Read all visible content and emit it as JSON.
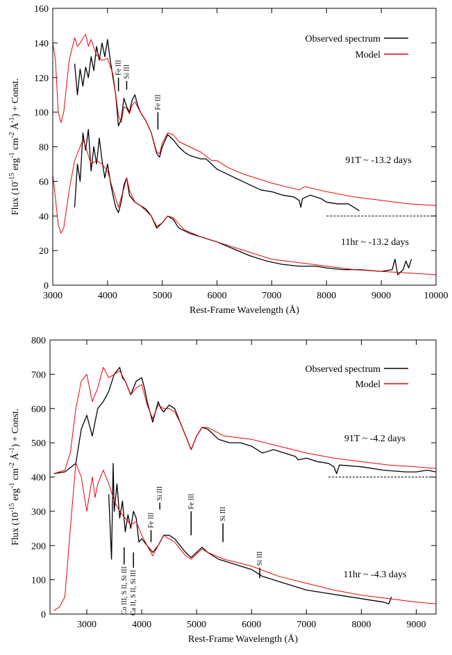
{
  "chart_data": [
    {
      "type": "line",
      "xlabel": "Rest-Frame Wavelength (Å)",
      "ylabel": [
        "Flux (10",
        "-15",
        " erg",
        "-1",
        " cm",
        "-2",
        " Å",
        "-1",
        ") + Const."
      ],
      "xlim": [
        3000,
        10000
      ],
      "ylim": [
        0,
        160
      ],
      "xticks": [
        3000,
        4000,
        5000,
        6000,
        7000,
        8000,
        9000,
        10000
      ],
      "yticks": [
        0,
        20,
        40,
        60,
        80,
        100,
        120,
        140,
        160
      ],
      "legend": [
        {
          "name": "Observed spectrum",
          "color": "#000000"
        },
        {
          "name": "Model",
          "color": "#e8000b"
        }
      ],
      "labels": [
        "91T ~ -13.2 days",
        "11hr ~ -13.2 days"
      ],
      "reference_lines": [
        {
          "y": 40,
          "x": [
            8000,
            10000
          ]
        }
      ],
      "line_ids": [
        {
          "text": "Fe III",
          "x": 4200
        },
        {
          "text": "Si III",
          "x": 4350
        },
        {
          "text": "Fe III",
          "x": 4920
        }
      ],
      "series": [
        {
          "color": "#000000",
          "x": [
            3400,
            3450,
            3500,
            3550,
            3600,
            3650,
            3700,
            3750,
            3800,
            3850,
            3900,
            3950,
            4000,
            4050,
            4100,
            4150,
            4200,
            4250,
            4300,
            4350,
            4400,
            4450,
            4500,
            4550,
            4600,
            4700,
            4800,
            4900,
            4950,
            5000,
            5100,
            5200,
            5300,
            5400,
            5500,
            5600,
            5700,
            5800,
            5900,
            6000,
            6200,
            6400,
            6600,
            6800,
            7000,
            7200,
            7400,
            7500,
            7530,
            7560,
            7700,
            7900,
            8000,
            8200,
            8400,
            8500,
            8600
          ],
          "values": [
            128,
            110,
            125,
            115,
            126,
            120,
            132,
            124,
            138,
            130,
            140,
            132,
            142,
            130,
            120,
            110,
            92,
            96,
            108,
            103,
            100,
            107,
            110,
            104,
            100,
            95,
            88,
            76,
            74,
            80,
            87,
            84,
            80,
            77,
            75,
            74,
            73,
            73,
            70,
            67,
            64,
            61,
            58,
            55,
            54,
            52,
            51,
            49,
            45,
            50,
            52,
            50,
            48,
            47,
            47,
            45,
            43
          ]
        },
        {
          "color": "#e8000b",
          "x": [
            3000,
            3050,
            3100,
            3150,
            3200,
            3300,
            3400,
            3450,
            3500,
            3600,
            3650,
            3700,
            3800,
            3900,
            4000,
            4100,
            4150,
            4200,
            4250,
            4300,
            4350,
            4400,
            4450,
            4500,
            4600,
            4700,
            4800,
            4900,
            4950,
            5000,
            5100,
            5200,
            5300,
            5500,
            5700,
            5900,
            6000,
            6200,
            6500,
            7000,
            7500,
            7600,
            8000,
            8500,
            9000,
            9500,
            10000
          ],
          "values": [
            140,
            130,
            100,
            94,
            100,
            130,
            143,
            138,
            140,
            145,
            138,
            142,
            133,
            130,
            131,
            122,
            110,
            98,
            94,
            103,
            102,
            99,
            104,
            106,
            100,
            95,
            88,
            77,
            76,
            82,
            88,
            87,
            83,
            80,
            77,
            72,
            72,
            68,
            64,
            59,
            55,
            57,
            54,
            51,
            49,
            47,
            46
          ]
        },
        {
          "color": "#000000",
          "x": [
            3400,
            3450,
            3500,
            3550,
            3600,
            3650,
            3700,
            3750,
            3800,
            3850,
            3900,
            3950,
            4000,
            4050,
            4100,
            4150,
            4200,
            4250,
            4300,
            4350,
            4400,
            4500,
            4600,
            4700,
            4800,
            4900,
            5000,
            5100,
            5200,
            5300,
            5500,
            5700,
            6000,
            6300,
            6600,
            6900,
            7200,
            7500,
            7800,
            8000,
            8300,
            8600,
            9000,
            9200,
            9250,
            9300,
            9400,
            9450,
            9500,
            9550
          ],
          "values": [
            45,
            70,
            60,
            88,
            78,
            90,
            66,
            80,
            70,
            85,
            72,
            62,
            70,
            60,
            52,
            45,
            42,
            48,
            58,
            62,
            52,
            48,
            46,
            44,
            40,
            33,
            36,
            40,
            38,
            33,
            30,
            28,
            25,
            21,
            17,
            14,
            12,
            11,
            11,
            10,
            9,
            9,
            8,
            9,
            15,
            6,
            9,
            14,
            10,
            15
          ]
        },
        {
          "color": "#e8000b",
          "x": [
            3000,
            3050,
            3100,
            3150,
            3200,
            3300,
            3400,
            3500,
            3550,
            3600,
            3700,
            3800,
            3900,
            4000,
            4100,
            4200,
            4300,
            4350,
            4400,
            4500,
            4600,
            4800,
            4900,
            5000,
            5100,
            5200,
            5400,
            5700,
            6000,
            6500,
            7000,
            7500,
            8000,
            8500,
            9000,
            9500,
            10000
          ],
          "values": [
            64,
            50,
            35,
            30,
            33,
            55,
            72,
            80,
            84,
            80,
            70,
            72,
            70,
            66,
            55,
            45,
            56,
            62,
            55,
            48,
            46,
            40,
            34,
            36,
            40,
            39,
            32,
            28,
            25,
            20,
            15,
            13,
            11,
            9,
            8,
            7,
            6
          ]
        }
      ]
    },
    {
      "type": "line",
      "xlabel": "Rest-Frame Wavelength (Å)",
      "ylabel": [
        "Flux (10",
        "-15",
        " erg",
        "-1",
        " cm",
        "-2",
        " Å",
        "-1",
        ") + Const."
      ],
      "xlim": [
        2330,
        9360
      ],
      "ylim": [
        0,
        800
      ],
      "xticks": [
        3000,
        4000,
        5000,
        6000,
        7000,
        8000,
        9000
      ],
      "yticks": [
        0,
        100,
        200,
        300,
        400,
        500,
        600,
        700,
        800
      ],
      "legend": [
        {
          "name": "Observed spectrum",
          "color": "#000000"
        },
        {
          "name": "Model",
          "color": "#e8000b"
        }
      ],
      "labels": [
        "91T ~ -4.2 days",
        "11hr ~ -4.3 days"
      ],
      "reference_lines": [
        {
          "y": 400,
          "x": [
            7400,
            9360
          ]
        }
      ],
      "line_ids": [
        {
          "text": "Co III, S II, Si III",
          "x": 3680
        },
        {
          "text": "Ca II, S II, Si III",
          "x": 3850
        },
        {
          "text": "Fe III",
          "x": 4170
        },
        {
          "text": "Si III",
          "x": 4330
        },
        {
          "text": "Fe III",
          "x": 4900
        },
        {
          "text": "Si III",
          "x": 5480
        },
        {
          "text": "Si III",
          "x": 6150
        }
      ],
      "series": [
        {
          "color": "#000000",
          "x": [
            2400,
            2600,
            2800,
            2900,
            3000,
            3100,
            3200,
            3300,
            3400,
            3500,
            3600,
            3650,
            3700,
            3800,
            3900,
            4000,
            4050,
            4100,
            4200,
            4300,
            4350,
            4400,
            4500,
            4600,
            4700,
            4800,
            4900,
            5000,
            5100,
            5200,
            5400,
            5600,
            5800,
            6000,
            6200,
            6400,
            6600,
            6800,
            6850,
            7000,
            7200,
            7400,
            7500,
            7550,
            7600,
            8000,
            8400,
            8800,
            9000,
            9200,
            9360
          ],
          "values": [
            410,
            415,
            440,
            540,
            580,
            520,
            600,
            620,
            650,
            700,
            720,
            690,
            680,
            640,
            680,
            690,
            660,
            620,
            560,
            620,
            600,
            590,
            610,
            600,
            560,
            520,
            480,
            520,
            545,
            540,
            510,
            500,
            500,
            490,
            470,
            480,
            470,
            460,
            450,
            455,
            445,
            440,
            430,
            410,
            435,
            430,
            420,
            415,
            415,
            420,
            415
          ]
        },
        {
          "color": "#e8000b",
          "x": [
            2400,
            2600,
            2700,
            2800,
            2900,
            3000,
            3100,
            3200,
            3300,
            3400,
            3500,
            3600,
            3700,
            3800,
            3900,
            4000,
            4100,
            4200,
            4300,
            4400,
            4500,
            4600,
            4700,
            4800,
            4900,
            5000,
            5100,
            5200,
            5500,
            6000,
            6500,
            7000,
            7500,
            8000,
            8500,
            9000,
            9360
          ],
          "values": [
            410,
            420,
            470,
            600,
            680,
            700,
            620,
            660,
            720,
            690,
            700,
            710,
            680,
            640,
            660,
            670,
            610,
            570,
            610,
            600,
            600,
            590,
            560,
            520,
            480,
            520,
            545,
            545,
            520,
            510,
            490,
            470,
            455,
            445,
            435,
            430,
            425
          ]
        },
        {
          "color": "#000000",
          "x": [
            3400,
            3450,
            3480,
            3500,
            3550,
            3600,
            3650,
            3700,
            3750,
            3800,
            3850,
            3900,
            3950,
            4000,
            4100,
            4200,
            4300,
            4400,
            4500,
            4600,
            4700,
            4800,
            4900,
            5000,
            5100,
            5200,
            5400,
            5600,
            5800,
            6000,
            6200,
            6400,
            6600,
            6800,
            7000,
            7200,
            7400,
            7600,
            7800,
            8000,
            8200,
            8400,
            8500,
            8550
          ],
          "values": [
            350,
            160,
            440,
            300,
            380,
            280,
            330,
            240,
            290,
            250,
            300,
            280,
            210,
            220,
            200,
            180,
            200,
            230,
            230,
            220,
            200,
            180,
            165,
            180,
            195,
            180,
            160,
            150,
            140,
            130,
            110,
            100,
            90,
            80,
            70,
            65,
            60,
            55,
            50,
            45,
            40,
            35,
            30,
            50
          ]
        },
        {
          "color": "#e8000b",
          "x": [
            2400,
            2500,
            2600,
            2700,
            2800,
            2900,
            3000,
            3100,
            3150,
            3200,
            3300,
            3400,
            3500,
            3600,
            3700,
            3800,
            3900,
            4000,
            4100,
            4200,
            4300,
            4400,
            4500,
            4600,
            4800,
            4900,
            5000,
            5100,
            5200,
            5500,
            6000,
            6500,
            7000,
            7500,
            8000,
            8500,
            9000,
            9360
          ],
          "values": [
            10,
            20,
            50,
            250,
            440,
            400,
            300,
            400,
            340,
            380,
            420,
            380,
            330,
            300,
            280,
            260,
            270,
            230,
            200,
            170,
            200,
            230,
            220,
            210,
            170,
            160,
            175,
            190,
            180,
            160,
            140,
            110,
            90,
            70,
            55,
            45,
            35,
            30
          ]
        }
      ]
    }
  ]
}
